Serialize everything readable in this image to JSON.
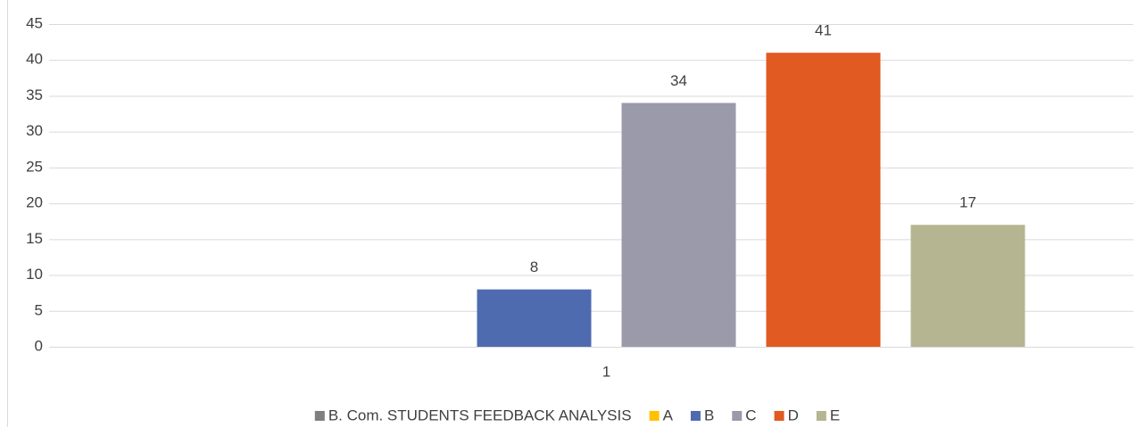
{
  "chart_data": {
    "type": "bar",
    "categories": [
      "1"
    ],
    "series": [
      {
        "name": "B. Com. STUDENTS FEEDBACK ANALYSIS",
        "color": "#7f7f7f",
        "values": [
          null
        ]
      },
      {
        "name": "A",
        "color": "#ffc000",
        "values": [
          null
        ]
      },
      {
        "name": "B",
        "color": "#4f6bb0",
        "values": [
          8
        ]
      },
      {
        "name": "C",
        "color": "#9a9aab",
        "values": [
          34
        ]
      },
      {
        "name": "D",
        "color": "#e05a22",
        "values": [
          41
        ]
      },
      {
        "name": "E",
        "color": "#b5b591",
        "values": [
          17
        ]
      }
    ],
    "ylim": [
      0,
      45
    ],
    "yticks": [
      0,
      5,
      10,
      15,
      20,
      25,
      30,
      35,
      40,
      45
    ],
    "grid": true,
    "legend": "bottom"
  }
}
